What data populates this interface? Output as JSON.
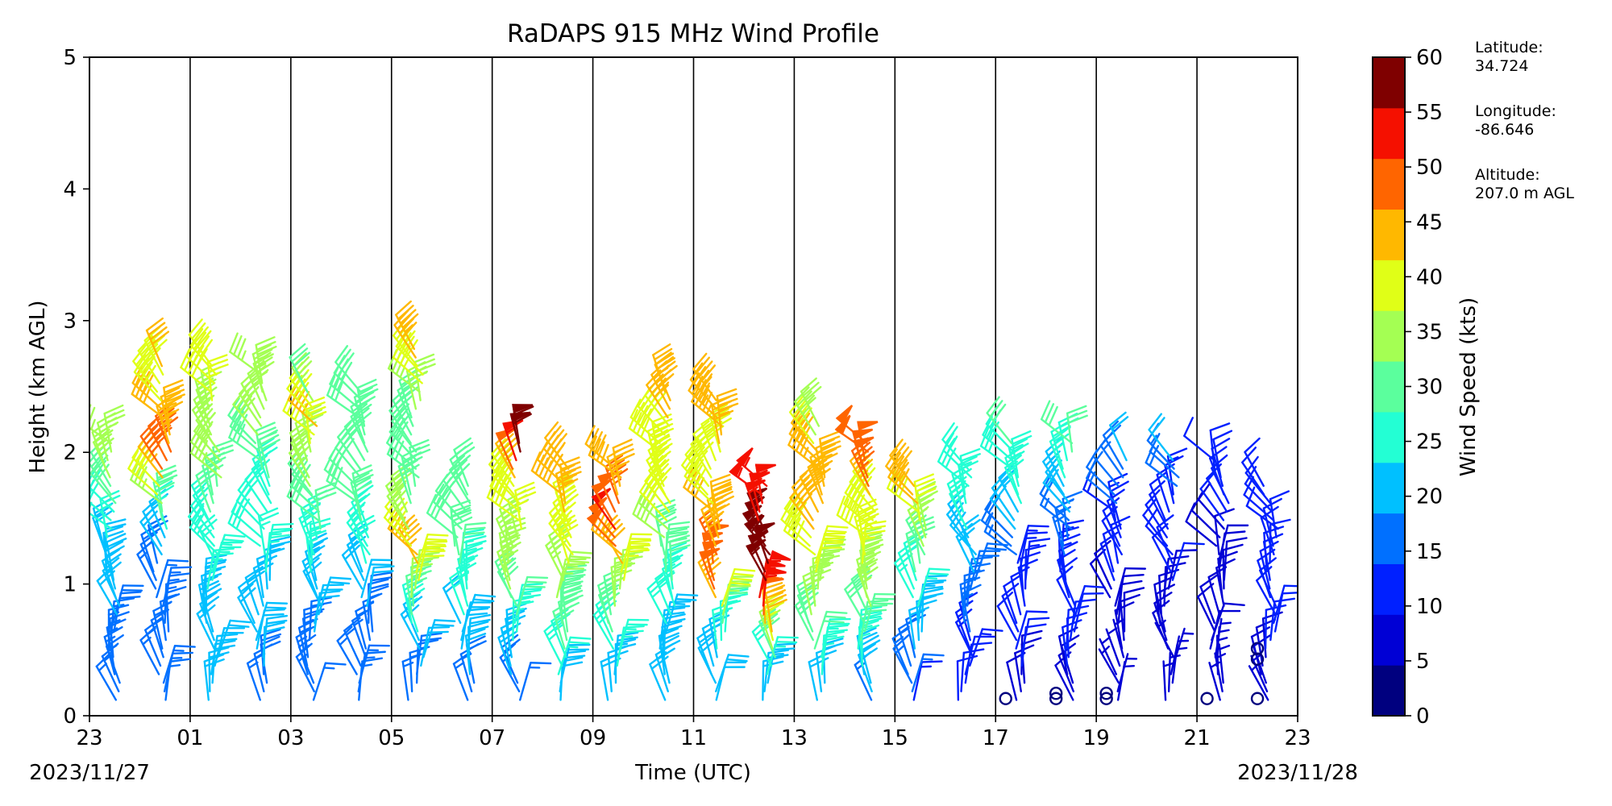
{
  "title": "RaDAPS 915 MHz Wind Profile",
  "xlabel": "Time (UTC)",
  "ylabel": "Height (km AGL)",
  "date_start": "2023/11/27",
  "date_end": "2023/11/28",
  "colorbar": {
    "label": "Wind Speed (kts)",
    "ticks": [
      "0",
      "5",
      "10",
      "15",
      "20",
      "25",
      "30",
      "35",
      "40",
      "45",
      "50",
      "55",
      "60"
    ],
    "colors": [
      "#00007f",
      "#0000d5",
      "#0020ff",
      "#0070ff",
      "#00c0ff",
      "#23ffd4",
      "#5bff9d",
      "#a4ff53",
      "#e0ff17",
      "#ffb800",
      "#ff6500",
      "#f51000",
      "#7f0000"
    ]
  },
  "info": {
    "latitude_label": "Latitude:",
    "latitude_value": "34.724",
    "longitude_label": "Longitude:",
    "longitude_value": "-86.646",
    "altitude_label": "Altitude:",
    "altitude_value": "207.0 m AGL"
  },
  "chart_data": {
    "type": "wind_barbs",
    "title": "RaDAPS 915 MHz Wind Profile",
    "xlabel": "Time (UTC)",
    "ylabel": "Height (km AGL)",
    "xlim_hours_utc": [
      23,
      47
    ],
    "ylim_km": [
      0,
      5
    ],
    "x_tick_labels": [
      "23",
      "01",
      "03",
      "05",
      "07",
      "09",
      "11",
      "13",
      "15",
      "17",
      "19",
      "21",
      "23"
    ],
    "y_tick_labels": [
      "0",
      "1",
      "2",
      "3",
      "4",
      "5"
    ],
    "grid": "vertical",
    "colorbar_range_kts": [
      0,
      60
    ],
    "profiles": [
      {
        "time": 23.0,
        "z_top": 2.1,
        "speeds": [
          [
            0,
            14
          ],
          [
            0.7,
            18
          ],
          [
            1.4,
            24
          ],
          [
            1.8,
            33
          ],
          [
            2.1,
            34
          ]
        ]
      },
      {
        "time": 24.0,
        "z_top": 2.7,
        "speeds": [
          [
            0,
            16
          ],
          [
            0.8,
            14
          ],
          [
            1.3,
            20
          ],
          [
            1.7,
            38
          ],
          [
            1.9,
            48
          ],
          [
            2.2,
            43
          ],
          [
            2.5,
            40
          ],
          [
            2.7,
            42
          ]
        ]
      },
      {
        "time": 25.0,
        "z_top": 2.7,
        "speeds": [
          [
            0,
            18
          ],
          [
            0.8,
            22
          ],
          [
            1.4,
            26
          ],
          [
            1.8,
            33
          ],
          [
            2.3,
            36
          ],
          [
            2.7,
            40
          ]
        ]
      },
      {
        "time": 26.0,
        "z_top": 2.6,
        "speeds": [
          [
            0,
            16
          ],
          [
            0.6,
            20
          ],
          [
            1.2,
            24
          ],
          [
            1.8,
            28
          ],
          [
            2.2,
            34
          ],
          [
            2.6,
            36
          ]
        ]
      },
      {
        "time": 27.0,
        "z_top": 2.5,
        "speeds": [
          [
            0,
            14
          ],
          [
            0.8,
            20
          ],
          [
            1.4,
            28
          ],
          [
            2.0,
            36
          ],
          [
            2.2,
            44
          ],
          [
            2.5,
            30
          ]
        ]
      },
      {
        "time": 28.0,
        "z_top": 2.5,
        "speeds": [
          [
            0,
            15
          ],
          [
            0.8,
            18
          ],
          [
            1.5,
            28
          ],
          [
            2.0,
            32
          ],
          [
            2.5,
            32
          ]
        ]
      },
      {
        "time": 29.0,
        "z_top": 2.8,
        "speeds": [
          [
            0,
            14
          ],
          [
            0.6,
            22
          ],
          [
            1.2,
            45
          ],
          [
            1.5,
            33
          ],
          [
            2.0,
            28
          ],
          [
            2.3,
            32
          ],
          [
            2.8,
            44
          ]
        ]
      },
      {
        "time": 30.0,
        "z_top": 1.8,
        "speeds": [
          [
            0,
            16
          ],
          [
            0.5,
            20
          ],
          [
            1.0,
            26
          ],
          [
            1.5,
            32
          ],
          [
            1.8,
            28
          ]
        ]
      },
      {
        "time": 31.0,
        "z_top": 2.1,
        "speeds": [
          [
            0,
            14
          ],
          [
            0.6,
            24
          ],
          [
            1.0,
            34
          ],
          [
            1.5,
            38
          ],
          [
            1.8,
            42
          ],
          [
            2.0,
            58
          ]
        ]
      },
      {
        "time": 32.0,
        "z_top": 1.9,
        "speeds": [
          [
            0,
            16
          ],
          [
            0.5,
            28
          ],
          [
            1.0,
            34
          ],
          [
            1.3,
            40
          ],
          [
            1.8,
            44
          ]
        ]
      },
      {
        "time": 33.0,
        "z_top": 1.9,
        "speeds": [
          [
            0,
            18
          ],
          [
            0.5,
            26
          ],
          [
            1.0,
            36
          ],
          [
            1.4,
            52
          ],
          [
            1.8,
            42
          ]
        ]
      },
      {
        "time": 34.0,
        "z_top": 2.5,
        "speeds": [
          [
            0,
            18
          ],
          [
            0.6,
            22
          ],
          [
            1.2,
            30
          ],
          [
            1.6,
            40
          ],
          [
            2.0,
            38
          ],
          [
            2.5,
            46
          ]
        ]
      },
      {
        "time": 35.0,
        "z_top": 2.4,
        "speeds": [
          [
            0,
            20
          ],
          [
            0.6,
            24
          ],
          [
            1.0,
            50
          ],
          [
            1.4,
            44
          ],
          [
            1.8,
            38
          ],
          [
            2.3,
            46
          ]
        ]
      },
      {
        "time": 36.0,
        "z_top": 1.8,
        "speeds": [
          [
            0,
            18
          ],
          [
            0.4,
            26
          ],
          [
            0.8,
            52
          ],
          [
            1.2,
            58
          ],
          [
            1.6,
            54
          ]
        ]
      },
      {
        "time": 37.0,
        "z_top": 2.2,
        "speeds": [
          [
            0,
            16
          ],
          [
            0.6,
            30
          ],
          [
            1.1,
            38
          ],
          [
            1.6,
            44
          ],
          [
            2.0,
            42
          ],
          [
            2.2,
            34
          ]
        ]
      },
      {
        "time": 38.0,
        "z_top": 2.1,
        "speeds": [
          [
            0,
            14
          ],
          [
            0.6,
            30
          ],
          [
            1.2,
            38
          ],
          [
            1.6,
            40
          ],
          [
            1.8,
            50
          ],
          [
            2.1,
            48
          ]
        ]
      },
      {
        "time": 39.0,
        "z_top": 1.8,
        "speeds": [
          [
            0,
            12
          ],
          [
            0.6,
            20
          ],
          [
            1.2,
            30
          ],
          [
            1.6,
            42
          ],
          [
            1.8,
            44
          ]
        ]
      },
      {
        "time": 40.0,
        "z_top": 1.9,
        "speeds": [
          [
            0,
            10
          ],
          [
            0.6,
            14
          ],
          [
            1.2,
            20
          ],
          [
            1.6,
            26
          ],
          [
            1.9,
            24
          ]
        ]
      },
      {
        "time": 41.0,
        "z_top": 2.1,
        "speeds": [
          [
            0,
            8
          ],
          [
            0.6,
            10
          ],
          [
            1.2,
            14
          ],
          [
            1.6,
            24
          ],
          [
            2.1,
            28
          ]
        ]
      },
      {
        "time": 42.0,
        "z_top": 2.1,
        "speeds": [
          [
            0,
            8
          ],
          [
            0.6,
            10
          ],
          [
            1.2,
            14
          ],
          [
            1.6,
            20
          ],
          [
            2.1,
            30
          ]
        ]
      },
      {
        "time": 43.0,
        "z_top": 2.0,
        "speeds": [
          [
            0,
            6
          ],
          [
            0.6,
            8
          ],
          [
            1.2,
            10
          ],
          [
            1.6,
            14
          ],
          [
            2.0,
            20
          ]
        ]
      },
      {
        "time": 44.0,
        "z_top": 2.0,
        "speeds": [
          [
            0,
            6
          ],
          [
            0.6,
            8
          ],
          [
            1.2,
            10
          ],
          [
            1.6,
            12
          ],
          [
            2.0,
            20
          ]
        ]
      },
      {
        "time": 45.0,
        "z_top": 2.0,
        "speeds": [
          [
            0,
            6
          ],
          [
            0.6,
            8
          ],
          [
            1.2,
            8
          ],
          [
            1.6,
            10
          ],
          [
            2.0,
            12
          ]
        ]
      },
      {
        "time": 46.0,
        "z_top": 1.8,
        "speeds": [
          [
            0,
            6
          ],
          [
            0.6,
            10
          ],
          [
            1.2,
            10
          ],
          [
            1.8,
            12
          ]
        ]
      }
    ],
    "calm_markers": [
      [
        41.2,
        0.13
      ],
      [
        42.2,
        0.13
      ],
      [
        42.2,
        0.17
      ],
      [
        43.2,
        0.13
      ],
      [
        43.2,
        0.17
      ],
      [
        45.2,
        0.13
      ],
      [
        46.2,
        0.13
      ],
      [
        46.2,
        0.43
      ],
      [
        46.2,
        0.51
      ]
    ]
  }
}
